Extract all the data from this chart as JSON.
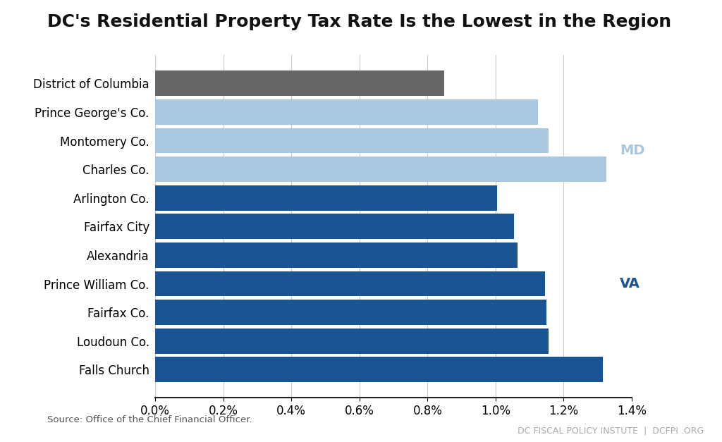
{
  "title": "DC's Residential Property Tax Rate Is the Lowest in the Region",
  "categories": [
    "Falls Church",
    "Loudoun Co.",
    "Fairfax Co.",
    "Prince William Co.",
    "Alexandria",
    "Fairfax City",
    "Arlington Co.",
    "Charles Co.",
    "Montomery Co.",
    "Prince George's Co.",
    "District of Columbia"
  ],
  "values": [
    0.01315,
    0.01155,
    0.0115,
    0.01145,
    0.01065,
    0.01055,
    0.01005,
    0.01325,
    0.01155,
    0.01125,
    0.0085
  ],
  "colors": [
    "#1a5494",
    "#1a5494",
    "#1a5494",
    "#1a5494",
    "#1a5494",
    "#1a5494",
    "#1a5494",
    "#aac8e0",
    "#aac8e0",
    "#aac8e0",
    "#666666"
  ],
  "md_label_color": "#aac8e0",
  "va_label_color": "#1a5494",
  "source_text": "Source: Office of the Chief Financial Officer.",
  "footer_text": "DC FISCAL POLICY INSTUTE  |  DCFPI .ORG",
  "xlim": [
    0,
    0.014
  ],
  "background_color": "#ffffff",
  "bar_height": 0.88,
  "grid_color": "#cccccc",
  "spine_color": "#222222",
  "tick_label_fontsize": 12,
  "title_fontsize": 18
}
